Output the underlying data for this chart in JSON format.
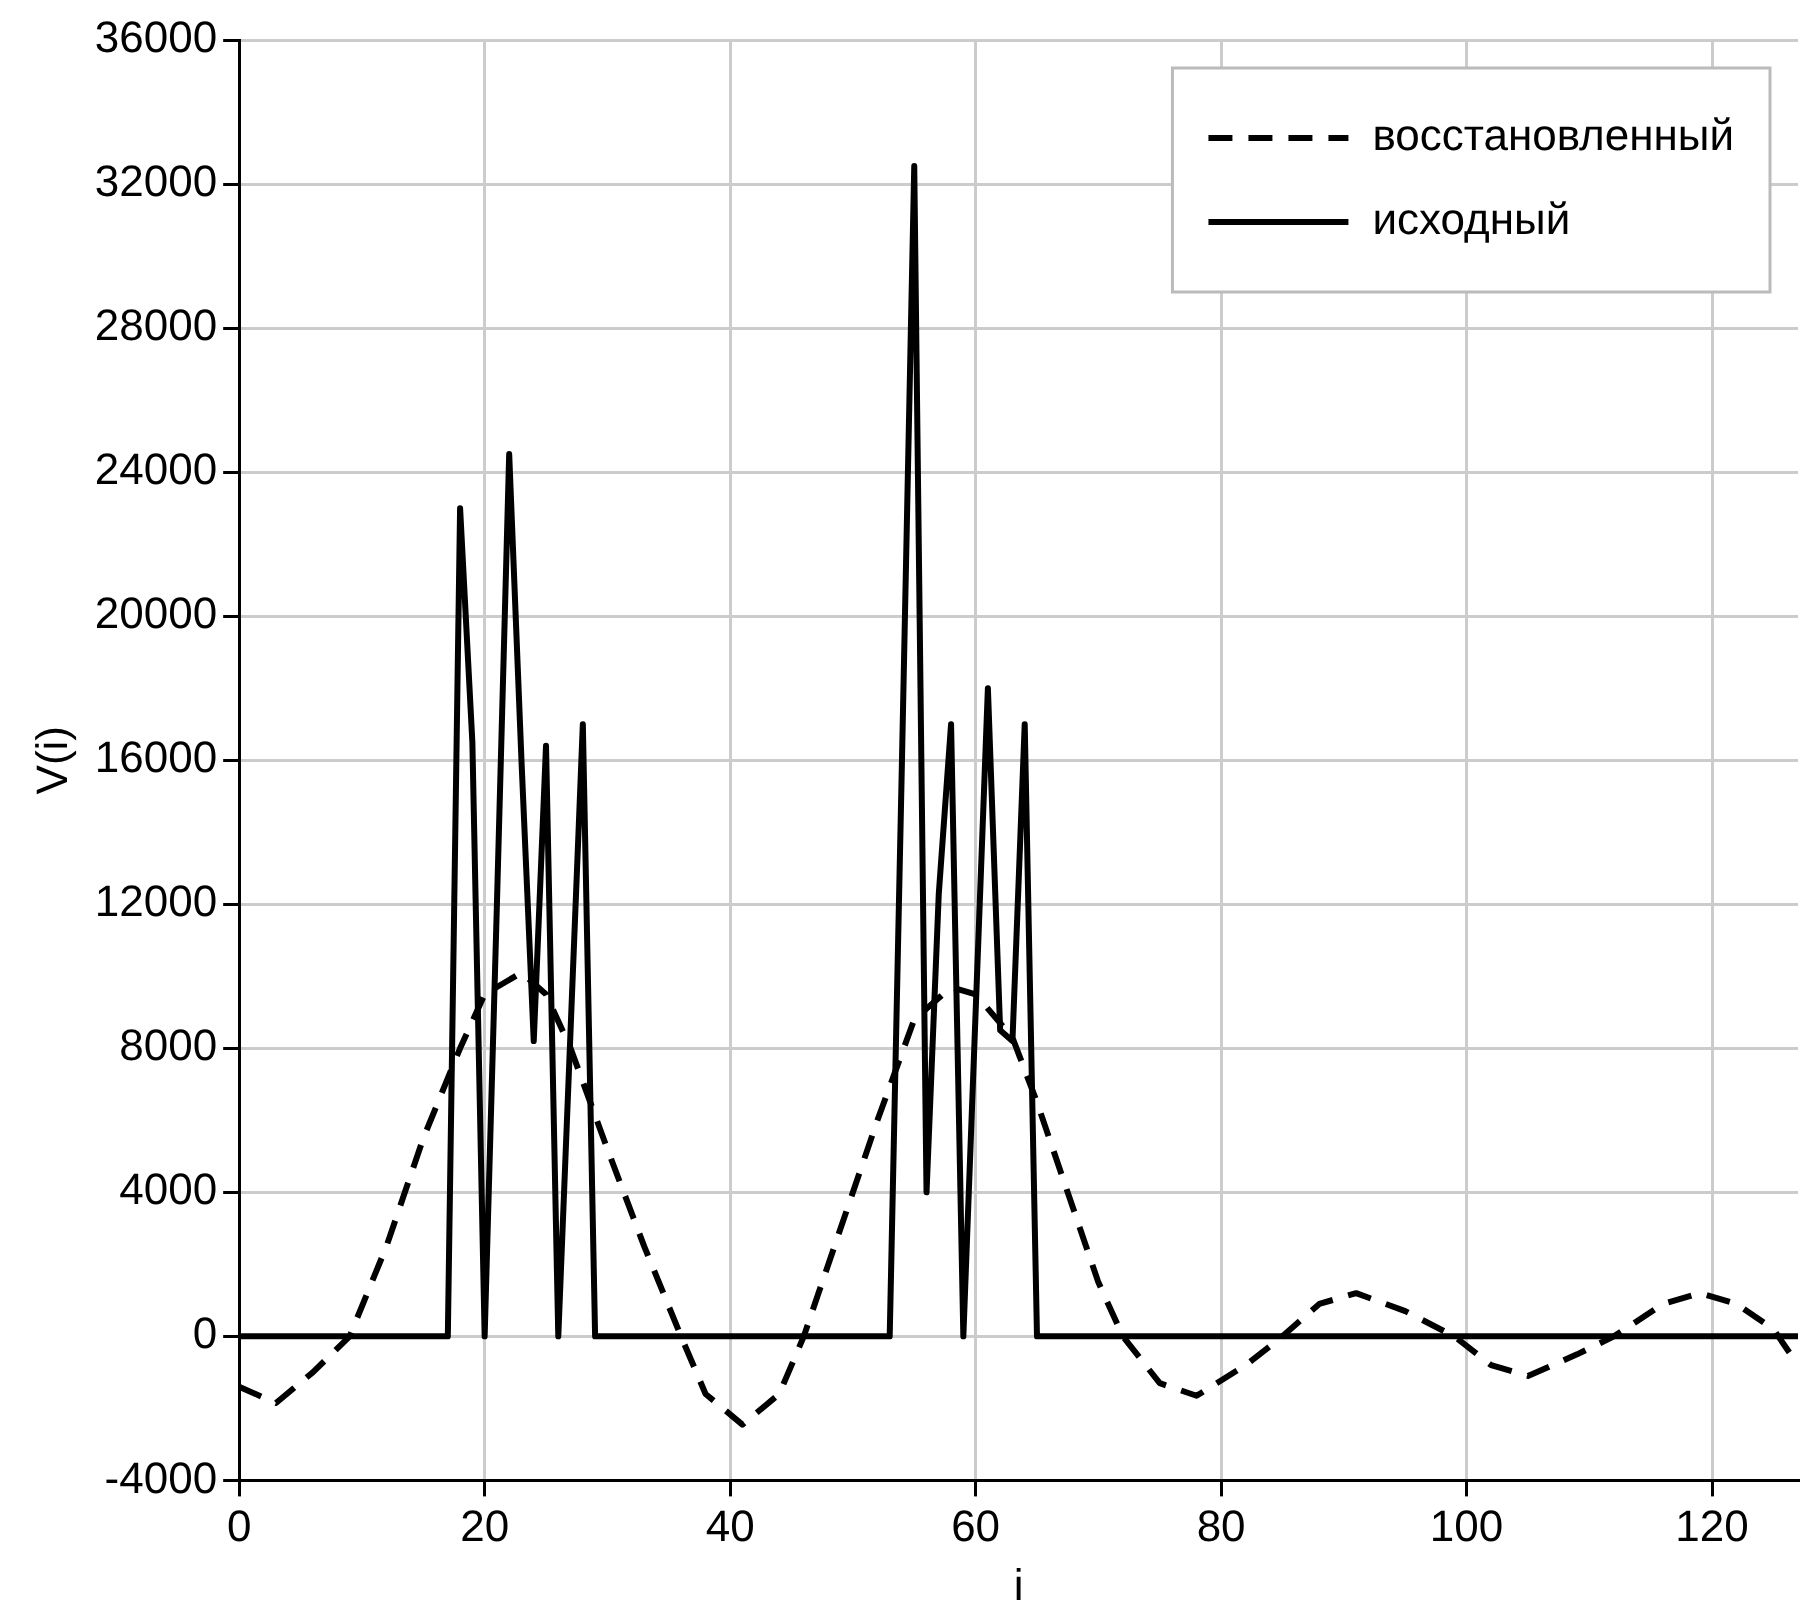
{
  "chart_data": {
    "type": "line",
    "xlabel": "i",
    "ylabel": "V(i)",
    "xlim": [
      0,
      127
    ],
    "xticks": [
      0,
      20,
      40,
      60,
      80,
      100,
      120
    ],
    "ylim": [
      -4000,
      36000
    ],
    "yticks": [
      -4000,
      0,
      4000,
      8000,
      12000,
      16000,
      20000,
      24000,
      28000,
      32000,
      36000
    ],
    "grid": true,
    "legend": "top right",
    "marker": "none",
    "series": [
      {
        "name": "восстановленный",
        "color": "#000000",
        "line_style": "dashed",
        "x": [
          0,
          3,
          6,
          9,
          12,
          15,
          18,
          20,
          23,
          25,
          27,
          30,
          33,
          36,
          38,
          41,
          44,
          46,
          49,
          52,
          55,
          58,
          60,
          63,
          65,
          68,
          70,
          72,
          75,
          78,
          82,
          85,
          88,
          91,
          95,
          99,
          102,
          105,
          109,
          112,
          116,
          119,
          122,
          125,
          127
        ],
        "values": [
          -1400,
          -1850,
          -1000,
          0,
          2500,
          5500,
          8000,
          9500,
          10100,
          9500,
          8000,
          5200,
          2500,
          0,
          -1600,
          -2450,
          -1600,
          0,
          3000,
          6000,
          8800,
          9700,
          9500,
          8300,
          6500,
          3500,
          1500,
          0,
          -1300,
          -1650,
          -800,
          0,
          900,
          1200,
          700,
          0,
          -800,
          -1100,
          -500,
          0,
          900,
          1200,
          900,
          200,
          -800
        ]
      },
      {
        "name": "исходный",
        "color": "#000000",
        "line_style": "solid",
        "x": [
          0,
          17,
          18,
          19,
          20,
          21,
          22,
          23,
          24,
          25,
          26,
          27,
          28,
          29,
          53,
          54,
          55,
          56,
          57,
          58,
          59,
          60,
          61,
          62,
          63,
          64,
          65,
          127
        ],
        "values": [
          0,
          0,
          23000,
          16500,
          0,
          12000,
          24500,
          16000,
          8200,
          16400,
          0,
          8500,
          17000,
          0,
          0,
          16000,
          32500,
          4000,
          12300,
          17000,
          0,
          9000,
          18000,
          8500,
          8200,
          17000,
          0,
          0
        ]
      }
    ]
  }
}
